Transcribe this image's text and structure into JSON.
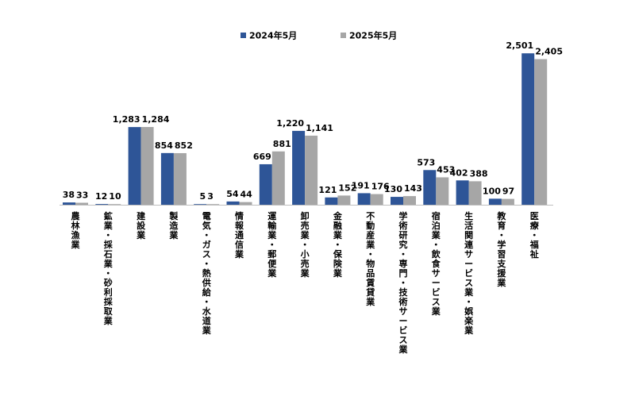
{
  "chart_data": {
    "type": "bar",
    "categories": [
      "農林漁業",
      "鉱業・採石業・砂利採取業",
      "建設業",
      "製造業",
      "電気・ガス・熱供給・水道業",
      "情報通信業",
      "運輸業・郵便業",
      "卸売業・小売業",
      "金融業・保険業",
      "不動産業・物品賃貸業",
      "学術研究・専門・技術サービス業",
      "宿泊業・飲食サービス業",
      "生活関連サービス業・娯楽業",
      "教育・学習支援業",
      "医療・福祉"
    ],
    "series": [
      {
        "name": "2024年5月",
        "color": "#2e5597",
        "values": [
          38,
          12,
          1283,
          854,
          5,
          54,
          669,
          1220,
          121,
          191,
          130,
          573,
          402,
          100,
          2501
        ]
      },
      {
        "name": "2025年5月",
        "color": "#a6a6a6",
        "values": [
          33,
          10,
          1284,
          852,
          3,
          44,
          881,
          1141,
          152,
          176,
          143,
          453,
          388,
          97,
          2405
        ]
      }
    ],
    "ylim": [
      0,
      2700
    ],
    "grid": false,
    "legend": "top-center",
    "title": "",
    "xlabel": "",
    "ylabel": ""
  }
}
